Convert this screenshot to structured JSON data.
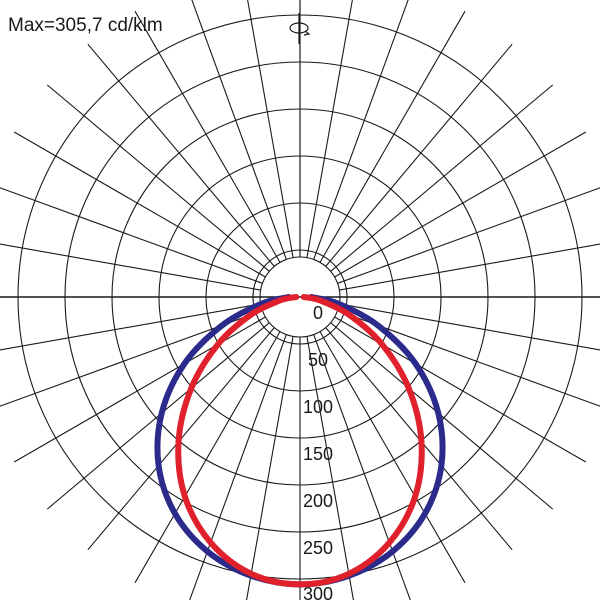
{
  "chart_data": {
    "type": "polar",
    "title": "Max=305,7 cd/klm",
    "unit": "cd/klm",
    "max_value": 305.7,
    "radial_ticks": [
      {
        "value": 0,
        "label": "0"
      },
      {
        "value": 50,
        "label": "50"
      },
      {
        "value": 100,
        "label": "100"
      },
      {
        "value": 150,
        "label": "150"
      },
      {
        "value": 200,
        "label": "200"
      },
      {
        "value": 250,
        "label": "250"
      },
      {
        "value": 300,
        "label": "300"
      }
    ],
    "radial_grid_step_deg": 10,
    "grid": true,
    "angle_axis": "0 deg = straight down (nadir), 180 deg = straight up",
    "series": [
      {
        "color": "#2b2b8c",
        "angles_deg": [
          0,
          10,
          20,
          30,
          40,
          50,
          60,
          70,
          80,
          90
        ],
        "values": [
          305.7,
          301,
          288,
          266,
          234,
          192,
          142,
          88,
          42,
          12
        ]
      },
      {
        "color": "#e0202a",
        "angles_deg": [
          0,
          10,
          20,
          30,
          40,
          50,
          60,
          70,
          80,
          90
        ],
        "values": [
          305.7,
          299,
          278,
          245,
          201,
          151,
          101,
          56,
          22,
          4
        ]
      }
    ],
    "symmetric": true
  },
  "rotation_icon": "rotation-symbol-icon"
}
